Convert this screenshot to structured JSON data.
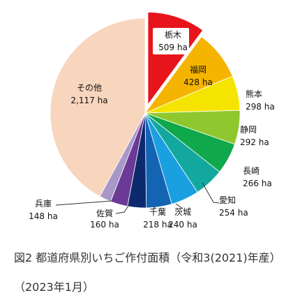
{
  "chart_data": {
    "type": "pie",
    "unit": "ha",
    "slices": [
      {
        "name": "栃木",
        "value": 509,
        "label": "509 ha",
        "color": "#e8141c",
        "exploded": true
      },
      {
        "name": "福岡",
        "value": 428,
        "label": "428 ha",
        "color": "#f5b400"
      },
      {
        "name": "熊本",
        "value": 298,
        "label": "298 ha",
        "color": "#f5e400"
      },
      {
        "name": "静岡",
        "value": 292,
        "label": "292 ha",
        "color": "#8fc82e"
      },
      {
        "name": "長崎",
        "value": 266,
        "label": "266 ha",
        "color": "#0fa84a"
      },
      {
        "name": "愛知",
        "value": 254,
        "label": "254 ha",
        "color": "#12a8a0"
      },
      {
        "name": "茨城",
        "value": 240,
        "label": "240 ha",
        "color": "#1aa0e0"
      },
      {
        "name": "千葉",
        "value": 218,
        "label": "218 ha",
        "color": "#1464b4"
      },
      {
        "name": "佐賀",
        "value": 160,
        "label": "160 ha",
        "color": "#0e2a6e"
      },
      {
        "name": "兵庫",
        "value": 148,
        "label": "148 ha",
        "color": "#6b3a96"
      },
      {
        "name": "",
        "value": 100,
        "label": "",
        "color": "#a898c8"
      },
      {
        "name": "その他",
        "value": 2117,
        "label": "2,117 ha",
        "color": "#f8d5bd"
      }
    ]
  },
  "caption": {
    "title": "図2 都道府県別いちご作付面積（令和3(2021)年産）",
    "date": "（2023年1月）"
  }
}
